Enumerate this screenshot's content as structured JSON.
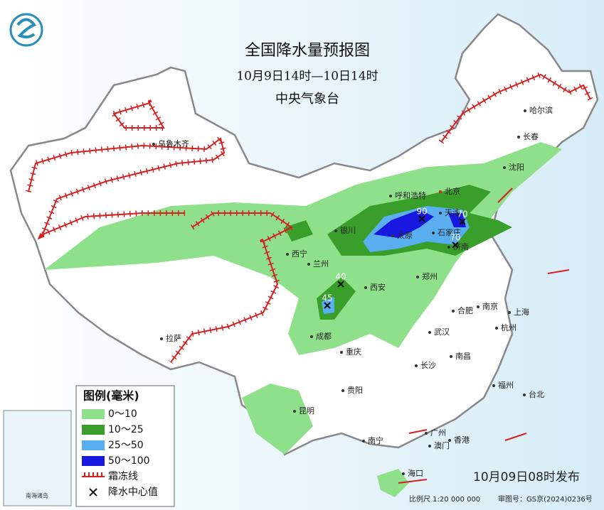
{
  "header": {
    "title": "全国降水量预报图",
    "subtitle": "10月9日14时—10日14时",
    "source": "中央气象台"
  },
  "legend": {
    "title": "图例(毫米)",
    "items": [
      "0～10",
      "10～25",
      "25～50",
      "50～100",
      "霜冻线",
      "降水中心值"
    ]
  },
  "cities": [
    "乌鲁木齐",
    "哈尔滨",
    "长春",
    "沈阳",
    "北京",
    "天津",
    "呼和浩特",
    "石家庄",
    "太原",
    "济南",
    "银川",
    "西宁",
    "兰州",
    "郑州",
    "西安",
    "成都",
    "重庆",
    "拉萨",
    "贵阳",
    "昆明",
    "南宁",
    "广州",
    "澳门",
    "香港",
    "海口",
    "长沙",
    "武汉",
    "合肥",
    "南京",
    "上海",
    "杭州",
    "南昌",
    "福州",
    "台北"
  ],
  "centers": [
    90,
    70,
    70,
    40,
    45
  ],
  "footer": {
    "issued": "10月09日08时发布",
    "scale": "比例尺 1:20 000 000",
    "approval": "审图号：GS京(2024)0236号"
  },
  "inset": {
    "label": "南海诸岛"
  }
}
